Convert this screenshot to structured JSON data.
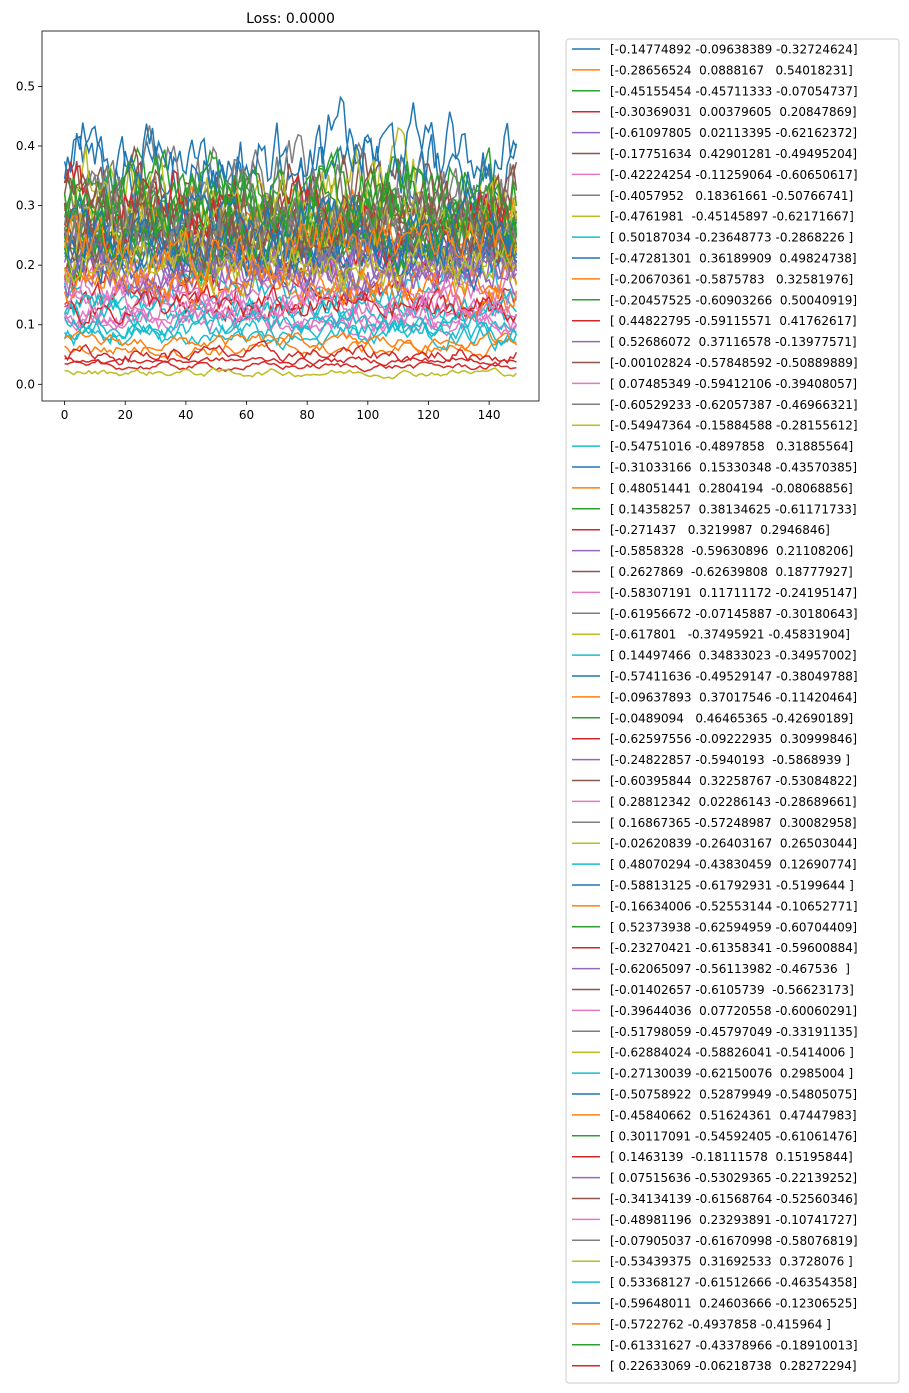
{
  "chart_data": {
    "type": "line",
    "title": "Loss: 0.0000",
    "xlabel": "",
    "ylabel": "",
    "xlim": [
      -7.45,
      156.45
    ],
    "ylim": [
      -0.028,
      0.593
    ],
    "xticks": [
      0,
      20,
      40,
      60,
      80,
      100,
      120,
      140
    ],
    "yticks": [
      0.0,
      0.1,
      0.2,
      0.3,
      0.4,
      0.5
    ],
    "xtick_labels": [
      "0",
      "20",
      "40",
      "60",
      "80",
      "100",
      "120",
      "140"
    ],
    "ytick_labels": [
      "0.0",
      "0.1",
      "0.2",
      "0.3",
      "0.4",
      "0.5"
    ],
    "grid": false,
    "legend_position": "outside-right",
    "n_points": 150,
    "palette": [
      "#1f77b4",
      "#ff7f0e",
      "#2ca02c",
      "#d62728",
      "#9467bd",
      "#8c564b",
      "#e377c2",
      "#7f7f7f",
      "#bcbd22",
      "#17becf"
    ],
    "series": [
      {
        "name": "[-0.14774892 -0.09638389 -0.32724624]",
        "level": 0.36,
        "amp": 0.1
      },
      {
        "name": "[-0.28656524  0.0888167   0.54018231]",
        "level": 0.28,
        "amp": 0.06
      },
      {
        "name": "[-0.45155454 -0.45711333 -0.07054737]",
        "level": 0.3,
        "amp": 0.09
      },
      {
        "name": "[-0.30369031  0.00379605  0.20847869]",
        "level": 0.2,
        "amp": 0.07
      },
      {
        "name": "[-0.61097805  0.02113395 -0.62162372]",
        "level": 0.24,
        "amp": 0.08
      },
      {
        "name": "[-0.17751634  0.42901281 -0.49495204]",
        "level": 0.33,
        "amp": 0.1
      },
      {
        "name": "[-0.42224254 -0.11259064 -0.60650617]",
        "level": 0.15,
        "amp": 0.05
      },
      {
        "name": "[-0.4057952   0.18361661 -0.50766741]",
        "level": 0.34,
        "amp": 0.11
      },
      {
        "name": "[-0.4761981  -0.45145897 -0.62171667]",
        "level": 0.31,
        "amp": 0.12
      },
      {
        "name": "[ 0.50187034 -0.23648773 -0.2868226 ]",
        "level": 0.12,
        "amp": 0.04
      },
      {
        "name": "[-0.47281301  0.36189909  0.49824738]",
        "level": 0.38,
        "amp": 0.12
      },
      {
        "name": "[-0.20670361 -0.5875783   0.32581976]",
        "level": 0.26,
        "amp": 0.07
      },
      {
        "name": "[-0.20457525 -0.60903266  0.50040919]",
        "level": 0.29,
        "amp": 0.09
      },
      {
        "name": "[ 0.44822795 -0.59115571  0.41762617]",
        "level": 0.14,
        "amp": 0.04
      },
      {
        "name": "[ 0.52686072  0.37116578 -0.13977571]",
        "level": 0.21,
        "amp": 0.06
      },
      {
        "name": "[-0.00102824 -0.57848592 -0.50889889]",
        "level": 0.25,
        "amp": 0.07
      },
      {
        "name": "[ 0.07485349 -0.59412106 -0.39408057]",
        "level": 0.1,
        "amp": 0.03
      },
      {
        "name": "[-0.60529233 -0.62057387 -0.46966321]",
        "level": 0.27,
        "amp": 0.08
      },
      {
        "name": "[-0.54947364 -0.15884588 -0.28155612]",
        "level": 0.22,
        "amp": 0.07
      },
      {
        "name": "[-0.54751016 -0.4897858   0.31885564]",
        "level": 0.16,
        "amp": 0.05
      },
      {
        "name": "[-0.31033166  0.15330348 -0.43570385]",
        "level": 0.23,
        "amp": 0.07
      },
      {
        "name": "[ 0.48051441  0.2804194  -0.08068856]",
        "level": 0.06,
        "amp": 0.02
      },
      {
        "name": "[ 0.14358257  0.38134625 -0.61171733]",
        "level": 0.32,
        "amp": 0.09
      },
      {
        "name": "[-0.271437   0.3219987  0.2946846]",
        "level": 0.03,
        "amp": 0.01
      },
      {
        "name": "[-0.5858328  -0.59630896  0.21108206]",
        "level": 0.19,
        "amp": 0.06
      },
      {
        "name": "[ 0.2627869  -0.62639808  0.18777927]",
        "level": 0.28,
        "amp": 0.08
      },
      {
        "name": "[-0.58307191  0.11711172 -0.24195147]",
        "level": 0.17,
        "amp": 0.05
      },
      {
        "name": "[-0.61956672 -0.07145887 -0.30180643]",
        "level": 0.24,
        "amp": 0.07
      },
      {
        "name": "[-0.617801   -0.37495921 -0.45831904]",
        "level": 0.02,
        "amp": 0.01
      },
      {
        "name": "[ 0.14497466  0.34833023 -0.34957002]",
        "level": 0.13,
        "amp": 0.04
      },
      {
        "name": "[-0.57411636 -0.49529147 -0.38049788]",
        "level": 0.22,
        "amp": 0.06
      },
      {
        "name": "[-0.09637893  0.37017546 -0.11420464]",
        "level": 0.18,
        "amp": 0.05
      },
      {
        "name": "[-0.0489094   0.46465365 -0.42690189]",
        "level": 0.27,
        "amp": 0.08
      },
      {
        "name": "[-0.62597556 -0.09222935  0.30999846]",
        "level": 0.04,
        "amp": 0.01
      },
      {
        "name": "[-0.24822857 -0.5940193  -0.5868939 ]",
        "level": 0.2,
        "amp": 0.06
      },
      {
        "name": "[-0.60395844  0.32258767 -0.53084822]",
        "level": 0.29,
        "amp": 0.09
      },
      {
        "name": "[ 0.28812342  0.02286143 -0.28689661]",
        "level": 0.11,
        "amp": 0.03
      },
      {
        "name": "[ 0.16867365 -0.57248987  0.30082958]",
        "level": 0.25,
        "amp": 0.07
      },
      {
        "name": "[-0.02620839 -0.26403167  0.26503044]",
        "level": 0.19,
        "amp": 0.05
      },
      {
        "name": "[ 0.48070294 -0.43830459  0.12690774]",
        "level": 0.09,
        "amp": 0.03
      },
      {
        "name": "[-0.58813125 -0.61792931 -0.5199644 ]",
        "level": 0.23,
        "amp": 0.07
      },
      {
        "name": "[-0.16634006 -0.52553144 -0.10652771]",
        "level": 0.16,
        "amp": 0.05
      },
      {
        "name": "[ 0.52373938 -0.62594959 -0.60704409]",
        "level": 0.26,
        "amp": 0.08
      },
      {
        "name": "[-0.23270421 -0.61358341 -0.59600884]",
        "level": 0.3,
        "amp": 0.09
      },
      {
        "name": "[-0.62065097 -0.56113982 -0.467536  ]",
        "level": 0.21,
        "amp": 0.06
      },
      {
        "name": "[-0.01402657 -0.6105739  -0.56623173]",
        "level": 0.28,
        "amp": 0.08
      },
      {
        "name": "[-0.39644036  0.07720558 -0.60060291]",
        "level": 0.12,
        "amp": 0.04
      },
      {
        "name": "[-0.51798059 -0.45797049 -0.33191135]",
        "level": 0.24,
        "amp": 0.07
      },
      {
        "name": "[-0.62884024 -0.58826041 -0.5414006 ]",
        "level": 0.27,
        "amp": 0.09
      },
      {
        "name": "[-0.27130039 -0.62150076  0.2985004 ]",
        "level": 0.08,
        "amp": 0.03
      },
      {
        "name": "[-0.50758922  0.52879949 -0.54805075]",
        "level": 0.22,
        "amp": 0.07
      },
      {
        "name": "[-0.45840662  0.51624361  0.47447983]",
        "level": 0.07,
        "amp": 0.02
      },
      {
        "name": "[ 0.30117091 -0.54592405 -0.61061476]",
        "level": 0.25,
        "amp": 0.08
      },
      {
        "name": "[ 0.1463139  -0.18111578  0.15195844]",
        "level": 0.13,
        "amp": 0.04
      },
      {
        "name": "[ 0.07515636 -0.53029365 -0.22139252]",
        "level": 0.18,
        "amp": 0.05
      },
      {
        "name": "[-0.34134139 -0.61568764 -0.52560346]",
        "level": 0.26,
        "amp": 0.08
      },
      {
        "name": "[-0.48981196  0.23293891 -0.10741727]",
        "level": 0.14,
        "amp": 0.04
      },
      {
        "name": "[-0.07905037 -0.61670998 -0.58076819]",
        "level": 0.29,
        "amp": 0.09
      },
      {
        "name": "[-0.53439375  0.31692533  0.3728076 ]",
        "level": 0.2,
        "amp": 0.06
      },
      {
        "name": "[ 0.53368127 -0.61512666 -0.46354358]",
        "level": 0.1,
        "amp": 0.03
      },
      {
        "name": "[-0.59648011  0.24603666 -0.12306525]",
        "level": 0.27,
        "amp": 0.08
      },
      {
        "name": "[-0.5722762 -0.4937858 -0.415964 ]",
        "level": 0.23,
        "amp": 0.07
      },
      {
        "name": "[-0.61331627 -0.43378966 -0.18910013]",
        "level": 0.31,
        "amp": 0.09
      },
      {
        "name": "[ 0.22633069 -0.06218738  0.28272294]",
        "level": 0.05,
        "amp": 0.02
      }
    ]
  }
}
